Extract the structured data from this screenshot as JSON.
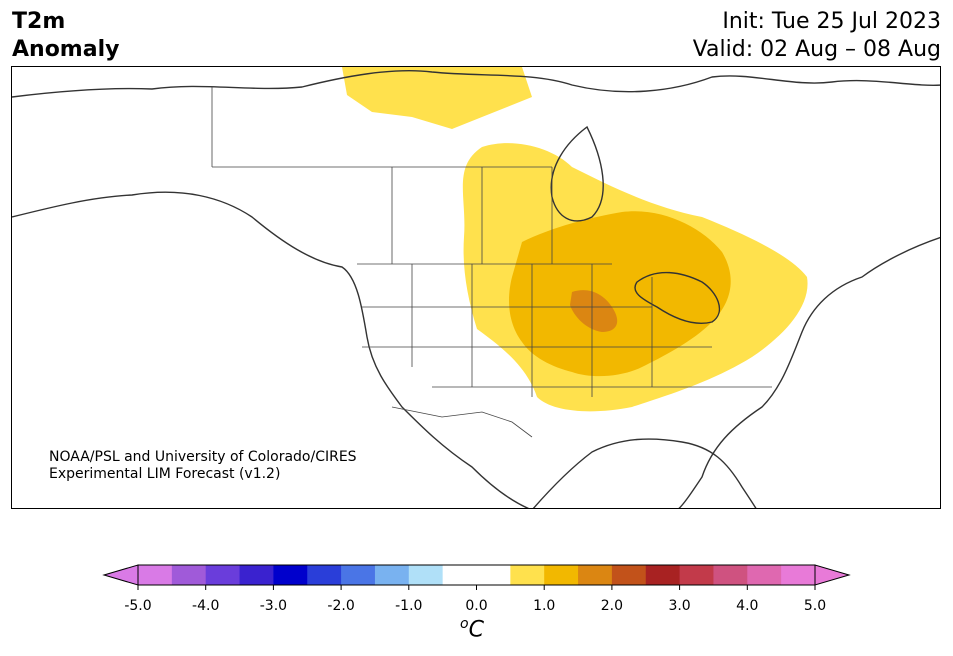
{
  "title": {
    "line1": "T2m",
    "line2": "Anomaly"
  },
  "dates": {
    "init": "Init: Tue 25 Jul 2023",
    "valid": "Valid: 02 Aug – 08 Aug"
  },
  "credit": {
    "line1": "NOAA/PSL and University of Colorado/CIRES",
    "line2": "Experimental LIM Forecast (v1.2)"
  },
  "colorbar": {
    "colors": [
      "#d97ae6",
      "#a05ad9",
      "#6a3ddb",
      "#3a22cf",
      "#0000cc",
      "#2a3ed9",
      "#4a75e6",
      "#79b2f0",
      "#b0e0f8",
      "#ffffff",
      "#ffffff",
      "#ffe14d",
      "#f2b800",
      "#db8612",
      "#c2521a",
      "#a82222",
      "#c23a4a",
      "#cf5280",
      "#df68b0",
      "#e87ad8"
    ],
    "low_extend_color": "#d97ae6",
    "high_extend_color": "#e87ad8",
    "ticks": [
      "-5.0",
      "-4.0",
      "-3.0",
      "-2.0",
      "-1.0",
      "0.0",
      "1.0",
      "2.0",
      "3.0",
      "4.0",
      "5.0"
    ],
    "units_base": "C",
    "units_sup": "o"
  },
  "anomaly_colors": {
    "weak": "#ffe14d",
    "moderate": "#f2b800",
    "strong": "#db8612"
  }
}
